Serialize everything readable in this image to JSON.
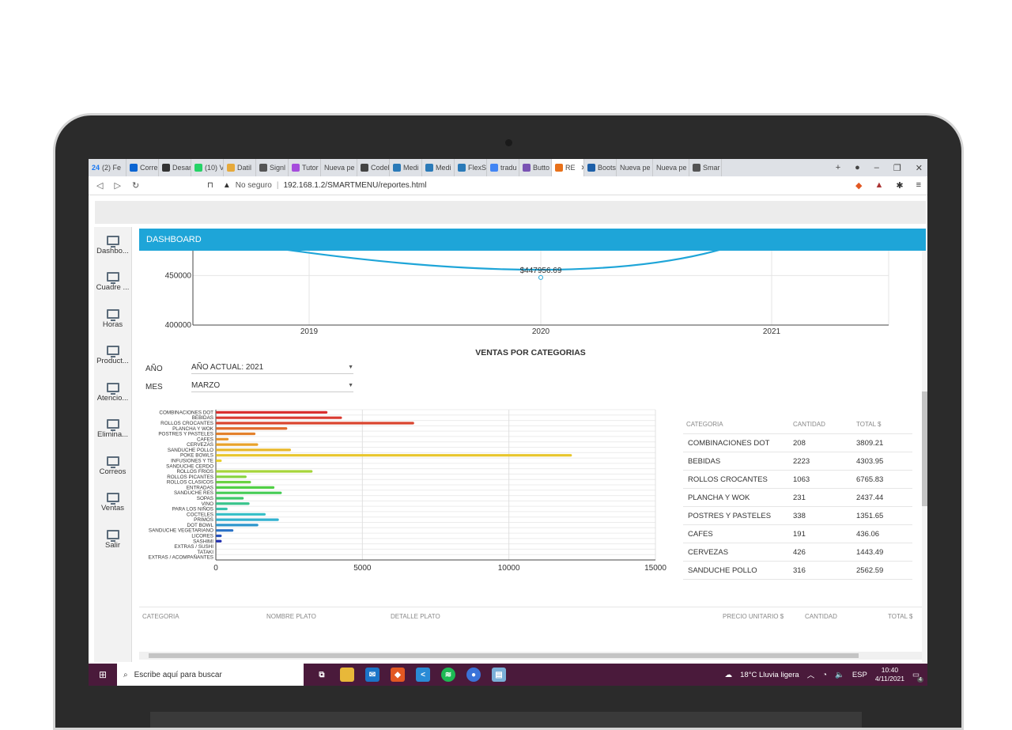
{
  "browser": {
    "tabs": [
      {
        "label": "(2) Fe",
        "badge": "24",
        "color": "#1877f2"
      },
      {
        "label": "Corre",
        "color": "#0a64d2"
      },
      {
        "label": "Desar",
        "color": "#333333"
      },
      {
        "label": "(10) V",
        "color": "#25d366"
      },
      {
        "label": "Datil",
        "color": "#e6a93a"
      },
      {
        "label": "Signl",
        "color": "#555555"
      },
      {
        "label": "Tutor",
        "color": "#a64ddc"
      },
      {
        "label": "Nueva pe",
        "color": "#dee1e6"
      },
      {
        "label": "Codel",
        "color": "#444444"
      },
      {
        "label": "Medi",
        "color": "#2a7ab8"
      },
      {
        "label": "Medi",
        "color": "#2a7ab8"
      },
      {
        "label": "FlexSl",
        "color": "#2a7ab8"
      },
      {
        "label": "tradu",
        "color": "#4285f4"
      },
      {
        "label": "Butto",
        "color": "#7952b3"
      },
      {
        "label": "RE",
        "color": "#e8711a",
        "active": true
      },
      {
        "label": "Boots",
        "color": "#1d5fa8"
      },
      {
        "label": "Nueva pe",
        "color": "#dee1e6"
      },
      {
        "label": "Nueva pe",
        "color": "#dee1e6"
      },
      {
        "label": "Smar",
        "color": "#555555"
      }
    ],
    "not_secure": "No seguro",
    "url": "192.168.1.2/SMARTMENU/reportes.html"
  },
  "sidebar": {
    "items": [
      {
        "label": "Dashbo..."
      },
      {
        "label": "Cuadre ..."
      },
      {
        "label": "Horas"
      },
      {
        "label": "Product..."
      },
      {
        "label": "Atencio..."
      },
      {
        "label": "Elimina..."
      },
      {
        "label": "Correos"
      },
      {
        "label": "Ventas"
      },
      {
        "label": "Salir"
      }
    ]
  },
  "dashboard": {
    "header": "DASHBOARD",
    "categories_title": "VENTAS POR CATEGORIAS",
    "year_label": "AÑO",
    "year_value": "AÑO ACTUAL: 2021",
    "month_label": "MES",
    "month_value": "MARZO"
  },
  "chart_data": [
    {
      "type": "line",
      "x": [
        "2019",
        "2020",
        "2021"
      ],
      "series": [
        {
          "values": [
            470000,
            447956.69,
            470000
          ]
        }
      ],
      "ylim": [
        400000,
        475000
      ],
      "yticks": [
        "450000",
        "400000"
      ],
      "annotation": "$447956.69",
      "color": "#1ea5d8",
      "grid": true
    },
    {
      "type": "bar",
      "orientation": "horizontal",
      "categories": [
        "COMBINACIONES DOT",
        "BEBIDAS",
        "ROLLOS CROCANTES",
        "PLANCHA Y WOK",
        "POSTRES Y PASTELES",
        "CAFES",
        "CERVEZAS",
        "SANDUCHE POLLO",
        "POKE BOWLS",
        "INFUSIONES Y TE",
        "SANDUCHE CERDO",
        "ROLLOS FRIOS",
        "ROLLOS PICANTES",
        "ROLLOS CLASICOS",
        "ENTRADAS",
        "SANDUCHE RES",
        "SOPAS",
        "VINO",
        "PARA LOS NIÑOS",
        "COCTELES",
        "PRIMOS",
        "DOT BOWL",
        "SANDUCHE VEGETARIANO",
        "LICORES",
        "SASHIMI",
        "EXTRAS / SUSHI",
        "TATAKI",
        "EXTRAS / ACOMPAÑANTES"
      ],
      "values": [
        3809.21,
        4303.95,
        6765.83,
        2437.44,
        1351.65,
        436.06,
        1443.49,
        2562.59,
        12150,
        200,
        0,
        3300,
        1050,
        1200,
        2000,
        2250,
        950,
        1150,
        400,
        1700,
        2150,
        1450,
        600,
        200,
        200,
        0,
        0,
        0
      ],
      "colors": [
        "#d93030",
        "#d93a30",
        "#d9452f",
        "#e06a2c",
        "#e3812c",
        "#e8942a",
        "#e8a22a",
        "#e8b82c",
        "#e8c62c",
        "#e8d030",
        "#cfd534",
        "#a6d53a",
        "#86d33e",
        "#6ad242",
        "#52cf46",
        "#45cc55",
        "#3ec86a",
        "#3ac48c",
        "#36c2ac",
        "#34bec6",
        "#32b2d0",
        "#2e96cc",
        "#2a72c6",
        "#2650bc",
        "#2230b0",
        "#1e28a8",
        "#2a2aa0",
        "#3a2c98"
      ],
      "xticks": [
        "0",
        "5000",
        "10000",
        "15000"
      ],
      "xlim": [
        0,
        15000
      ],
      "grid": true
    }
  ],
  "category_table": {
    "headers": [
      "CATEGORIA",
      "CANTIDAD",
      "TOTAL $"
    ],
    "rows": [
      [
        "COMBINACIONES DOT",
        "208",
        "3809.21"
      ],
      [
        "BEBIDAS",
        "2223",
        "4303.95"
      ],
      [
        "ROLLOS CROCANTES",
        "1063",
        "6765.83"
      ],
      [
        "PLANCHA Y WOK",
        "231",
        "2437.44"
      ],
      [
        "POSTRES Y PASTELES",
        "338",
        "1351.65"
      ],
      [
        "CAFES",
        "191",
        "436.06"
      ],
      [
        "CERVEZAS",
        "426",
        "1443.49"
      ],
      [
        "SANDUCHE POLLO",
        "316",
        "2562.59"
      ]
    ]
  },
  "detail_table": {
    "headers": [
      "CATEGORIA",
      "NOMBRE PLATO",
      "DETALLE PLATO",
      "PRECIO UNITARIO $",
      "CANTIDAD",
      "TOTAL $"
    ]
  },
  "taskbar": {
    "search_placeholder": "Escribe aquí para buscar",
    "weather": "18°C  Lluvia ligera",
    "lang": "ESP",
    "time": "10:40",
    "date": "4/11/2021",
    "notifications": "4"
  }
}
